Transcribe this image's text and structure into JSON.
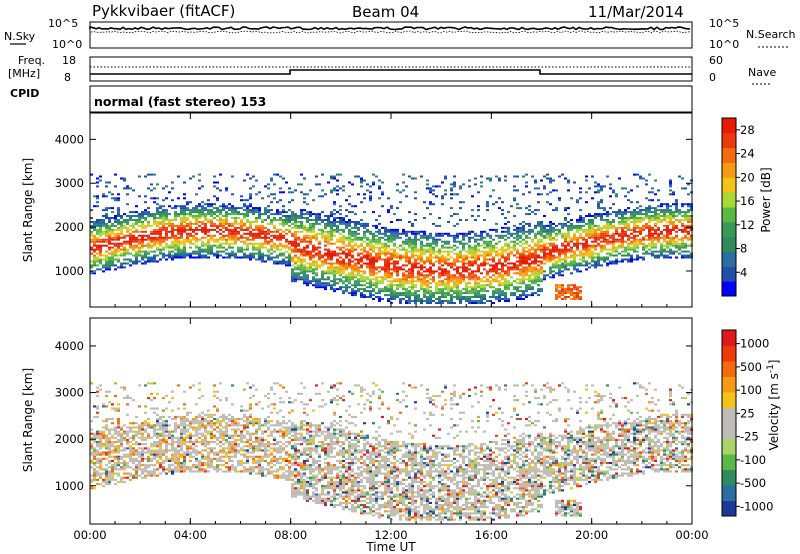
{
  "header": {
    "station": "Pykkvibaer (fitACF)",
    "beam": "Beam 04",
    "date": "11/Mar/2014"
  },
  "panels": {
    "nsky_label": "N.Sky",
    "nsky_ticks": [
      "10^5",
      "10^0"
    ],
    "nsearch_label": "N.Search",
    "nsearch_ticks": [
      "10^5",
      "10^0"
    ],
    "freq_label_top": "Freq.",
    "freq_label_bot": "[MHz]",
    "freq_ticks": [
      "18",
      "8"
    ],
    "nave_label": "Nave",
    "nave_ticks": [
      "60",
      "0"
    ],
    "cpid_label": "CPID",
    "cpid_text": "normal (fast stereo) 153"
  },
  "chart_data": [
    {
      "type": "heatmap",
      "name": "power",
      "ylabel": "Slant Range [km]",
      "y_ticks": [
        "4000",
        "3000",
        "2000",
        "1000"
      ],
      "y_tick_values": [
        4000,
        3000,
        2000,
        1000
      ],
      "ylim": [
        180,
        4600
      ],
      "xlim": [
        0,
        24
      ],
      "colorbar_label": "Power [dB]",
      "colorbar_ticks": [
        "28",
        "24",
        "20",
        "16",
        "12",
        "8",
        "4"
      ],
      "colorbar_tick_values": [
        28,
        24,
        20,
        16,
        12,
        8,
        4
      ],
      "colorbar_range": [
        0,
        30
      ],
      "colorbar_colors": [
        "#0000ff",
        "#1f4fa8",
        "#2a6fa0",
        "#2f8a5e",
        "#3a9a55",
        "#5cb845",
        "#a8d836",
        "#f2c417",
        "#f59a12",
        "#f46a0e",
        "#ee3a0a",
        "#e81a06"
      ]
    },
    {
      "type": "heatmap",
      "name": "velocity",
      "ylabel": "Slant Range [km]",
      "y_ticks": [
        "4000",
        "3000",
        "2000",
        "1000"
      ],
      "y_tick_values": [
        4000,
        3000,
        2000,
        1000
      ],
      "ylim": [
        180,
        4600
      ],
      "xlim": [
        0,
        24
      ],
      "colorbar_label": "Velocity [m s",
      "colorbar_label_sup": "-1",
      "colorbar_label_end": "]",
      "colorbar_ticks": [
        "1000",
        "500",
        "100",
        "25",
        "-25",
        "-100",
        "-500",
        "-1000"
      ],
      "colorbar_colors": [
        "#1a3a9a",
        "#2a6fa0",
        "#2f8a5e",
        "#5cb845",
        "#a9d46a",
        "#bebcb4",
        "#bebcb4",
        "#f2c417",
        "#f59a12",
        "#f46a0e",
        "#ee3a0a",
        "#e01a1a"
      ]
    }
  ],
  "x_axis": {
    "ticks": [
      "00:00",
      "04:00",
      "08:00",
      "12:00",
      "16:00",
      "20:00",
      "00:00"
    ],
    "tick_hours": [
      0,
      4,
      8,
      12,
      16,
      20,
      24
    ],
    "label": "Time UT"
  }
}
